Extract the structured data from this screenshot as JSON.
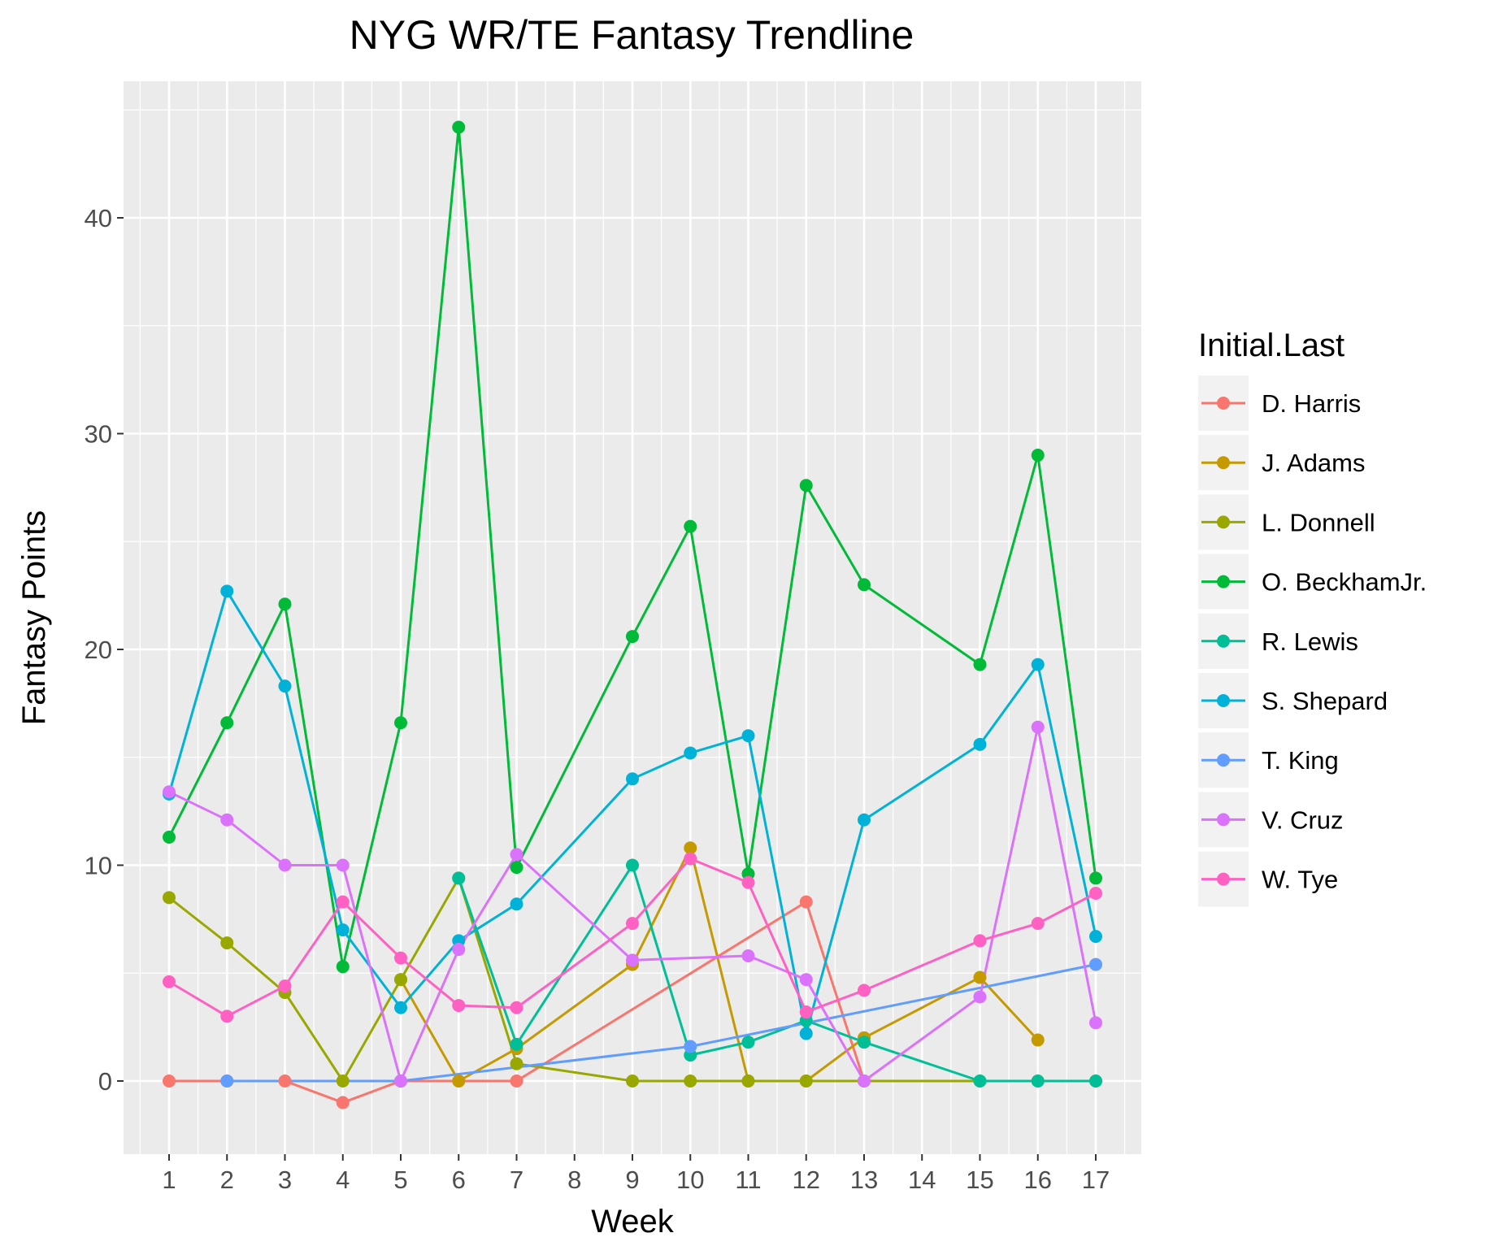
{
  "chart_data": {
    "type": "line",
    "title": "NYG WR/TE Fantasy Trendline",
    "xlabel": "Week",
    "ylabel": "Fantasy Points",
    "x_categories": [
      "1",
      "2",
      "3",
      "4",
      "5",
      "6",
      "7",
      "8",
      "9",
      "10",
      "11",
      "12",
      "13",
      "14",
      "15",
      "16",
      "17"
    ],
    "yticks": [
      "0",
      "10",
      "20",
      "30",
      "40"
    ],
    "ylim": [
      -3.2,
      46.2
    ],
    "grid": true,
    "legend": {
      "title": "Initial.Last",
      "position": "right"
    },
    "series": [
      {
        "name": "D. Harris",
        "color": "#F8766D",
        "points": [
          [
            1,
            0
          ],
          [
            2,
            0
          ],
          [
            3,
            0
          ],
          [
            4,
            -1
          ],
          [
            5,
            0
          ],
          [
            6,
            0
          ],
          [
            7,
            0
          ],
          [
            12,
            8.3
          ],
          [
            13,
            0
          ]
        ]
      },
      {
        "name": "J. Adams",
        "color": "#C49A00",
        "points": [
          [
            5,
            4.7
          ],
          [
            6,
            0
          ],
          [
            7,
            1.5
          ],
          [
            9,
            5.4
          ],
          [
            10,
            10.8
          ],
          [
            11,
            0
          ],
          [
            12,
            0
          ],
          [
            13,
            2
          ],
          [
            15,
            4.8
          ],
          [
            16,
            1.9
          ]
        ]
      },
      {
        "name": "L. Donnell",
        "color": "#99A800",
        "points": [
          [
            1,
            8.5
          ],
          [
            2,
            6.4
          ],
          [
            3,
            4.1
          ],
          [
            4,
            0
          ],
          [
            5,
            4.7
          ],
          [
            6,
            9.4
          ],
          [
            7,
            0.8
          ],
          [
            9,
            0
          ],
          [
            10,
            0
          ],
          [
            11,
            0
          ],
          [
            12,
            0
          ],
          [
            13,
            0
          ],
          [
            15,
            0
          ],
          [
            16,
            0
          ],
          [
            17,
            0
          ]
        ]
      },
      {
        "name": "O. BeckhamJr.",
        "color": "#00BA38",
        "points": [
          [
            1,
            11.3
          ],
          [
            2,
            16.6
          ],
          [
            3,
            22.1
          ],
          [
            4,
            5.3
          ],
          [
            5,
            16.6
          ],
          [
            6,
            44.2
          ],
          [
            7,
            9.9
          ],
          [
            9,
            20.6
          ],
          [
            10,
            25.7
          ],
          [
            11,
            9.6
          ],
          [
            12,
            27.6
          ],
          [
            13,
            23
          ],
          [
            15,
            19.3
          ],
          [
            16,
            29
          ],
          [
            17,
            9.4
          ]
        ]
      },
      {
        "name": "R. Lewis",
        "color": "#00BF96",
        "points": [
          [
            6,
            9.4
          ],
          [
            7,
            1.7
          ],
          [
            9,
            10
          ],
          [
            10,
            1.2
          ],
          [
            11,
            1.8
          ],
          [
            12,
            2.8
          ],
          [
            13,
            1.8
          ],
          [
            15,
            0
          ],
          [
            16,
            0
          ],
          [
            17,
            0
          ]
        ]
      },
      {
        "name": "S. Shepard",
        "color": "#00B2D8",
        "points": [
          [
            1,
            13.3
          ],
          [
            2,
            22.7
          ],
          [
            3,
            18.3
          ],
          [
            4,
            7
          ],
          [
            5,
            3.4
          ],
          [
            6,
            6.5
          ],
          [
            7,
            8.2
          ],
          [
            9,
            14
          ],
          [
            10,
            15.2
          ],
          [
            11,
            16
          ],
          [
            12,
            2.2
          ],
          [
            13,
            12.1
          ],
          [
            15,
            15.6
          ],
          [
            16,
            19.3
          ],
          [
            17,
            6.7
          ]
        ]
      },
      {
        "name": "T. King",
        "color": "#619CFF",
        "points": [
          [
            2,
            0
          ],
          [
            5,
            0
          ],
          [
            10,
            1.6
          ],
          [
            17,
            5.4
          ]
        ]
      },
      {
        "name": "V. Cruz",
        "color": "#DB72FB",
        "points": [
          [
            1,
            13.4
          ],
          [
            2,
            12.1
          ],
          [
            3,
            10
          ],
          [
            4,
            10
          ],
          [
            5,
            0
          ],
          [
            6,
            6.1
          ],
          [
            7,
            10.5
          ],
          [
            9,
            5.6
          ],
          [
            11,
            5.8
          ],
          [
            12,
            4.7
          ],
          [
            13,
            0
          ],
          [
            15,
            3.9
          ],
          [
            16,
            16.4
          ],
          [
            17,
            2.7
          ]
        ]
      },
      {
        "name": "W. Tye",
        "color": "#FF61C3",
        "points": [
          [
            1,
            4.6
          ],
          [
            2,
            3
          ],
          [
            3,
            4.4
          ],
          [
            4,
            8.3
          ],
          [
            5,
            5.7
          ],
          [
            6,
            3.5
          ],
          [
            7,
            3.4
          ],
          [
            9,
            7.3
          ],
          [
            10,
            10.3
          ],
          [
            11,
            9.2
          ],
          [
            12,
            3.2
          ],
          [
            13,
            4.2
          ],
          [
            15,
            6.5
          ],
          [
            16,
            7.3
          ],
          [
            17,
            8.7
          ]
        ]
      }
    ]
  }
}
